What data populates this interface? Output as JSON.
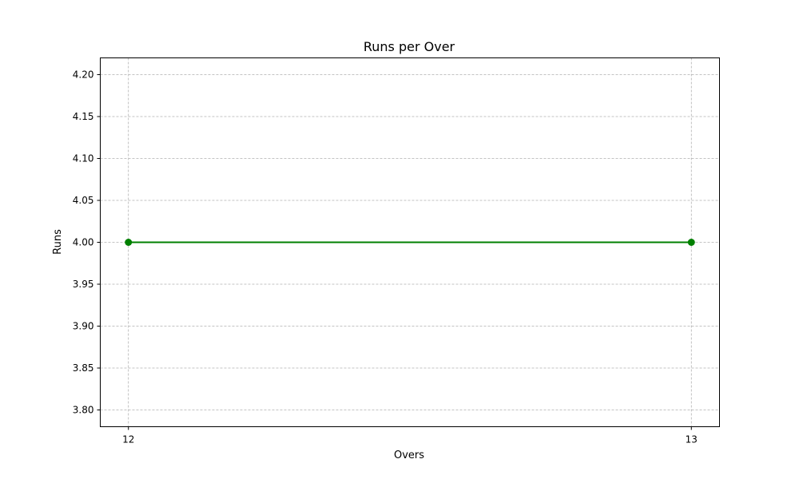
{
  "chart_data": {
    "type": "line",
    "title": "Runs per Over",
    "xlabel": "Overs",
    "ylabel": "Runs",
    "x": [
      12,
      13
    ],
    "series": [
      {
        "values": [
          4.0,
          4.0
        ],
        "color": "#008000",
        "marker": "circle"
      }
    ],
    "xticks": [
      "12",
      "13"
    ],
    "yticks": [
      "3.80",
      "3.85",
      "3.90",
      "3.95",
      "4.00",
      "4.05",
      "4.10",
      "4.15",
      "4.20"
    ],
    "ylim": [
      3.78,
      4.22
    ],
    "xlim": [
      11.95,
      13.05
    ],
    "grid": true,
    "grid_style": "dashed",
    "colors": {
      "grid": "#b0b0b0",
      "axes": "#000000"
    }
  }
}
